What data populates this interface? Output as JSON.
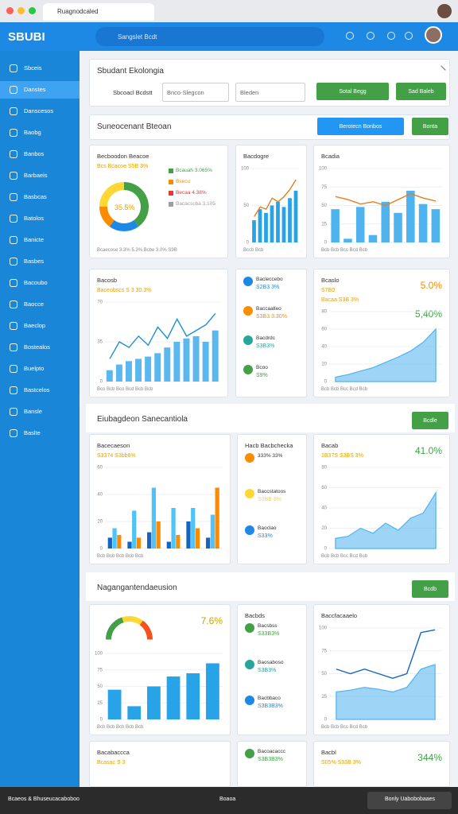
{
  "browser": {
    "tab": "Ruagnodcaled"
  },
  "header": {
    "logo": "SBUBI",
    "search": "Sangslet Bcdt"
  },
  "sidebar": [
    "Sbceis",
    "Danstes",
    "Danscesos",
    "Baobg",
    "Banbos",
    "Barbaeis",
    "Basbcas",
    "Batolos",
    "Banicte",
    "Basbes",
    "Bacoubo",
    "Baocce",
    "Baeclop",
    "Bostealos",
    "Buelpto",
    "Bastcelos",
    "Bansle",
    "Baslte"
  ],
  "filter": {
    "title": "Sbudant Ekolongia",
    "label": "Sbcoacl Bcdstt",
    "select1": "Bnco-Slegcon",
    "select2": "Bleden",
    "button1": "Sotal Begg",
    "button2": "Sad Baleb"
  },
  "panel": {
    "title": "Suneocenant Bteoan",
    "button1": "Berotecn Bonbos",
    "button2": "Bonta"
  },
  "section2": {
    "title": "Eiubagdeon Sanecantiola",
    "button": "Bcdle"
  },
  "section3": {
    "title": "Nagangantendaeusion",
    "button": "Bcdb"
  },
  "widgets": [
    {
      "title": "Becboodon Beacoe",
      "texts": [
        "Bcs Bcacoe S5B 3%"
      ],
      "donut": {
        "center": "35.5%",
        "values": [
          40,
          20,
          15,
          25
        ],
        "colors": [
          "#43a047",
          "#1e88e5",
          "#fb8c00",
          "#fdd835"
        ]
      },
      "legend": [
        {
          "label": "Bcauah 3.065%",
          "color": "#43a047"
        },
        {
          "label": "Bsecu",
          "color": "#fb8c00"
        },
        {
          "label": "Becaa 4.38%",
          "color": "#e53935"
        },
        {
          "label": "Bacacscba 3.105",
          "color": "#9e9e9e"
        }
      ],
      "footer": "Bcaecose  3.3%  5.3%   Bcbe 3.0%  S9B"
    },
    {
      "title": "Bacdogre",
      "chart": {
        "ylim": [
          0,
          100
        ],
        "yticks": [
          0,
          50,
          100
        ],
        "series": [
          {
            "kind": "bar",
            "color": "#29a3e8",
            "values": [
              30,
              45,
              40,
              50,
              55,
              48,
              60,
              70
            ]
          },
          {
            "kind": "line",
            "color": "#e67e22",
            "values": [
              35,
              48,
              45,
              60,
              55,
              62,
              72,
              85
            ]
          }
        ]
      },
      "footer": "Bccb  Bcb"
    },
    {
      "title": "Bcadia",
      "chart": {
        "ylim": [
          0,
          100
        ],
        "yticks": [
          0,
          25,
          50,
          75,
          100
        ],
        "series": [
          {
            "kind": "bar",
            "color": "#4fb3ef",
            "values": [
              45,
              5,
              48,
              10,
              55,
              40,
              70,
              52,
              45
            ]
          },
          {
            "kind": "line",
            "color": "#e67e22",
            "values": [
              62,
              58,
              52,
              55,
              50,
              58,
              66,
              60,
              56
            ]
          }
        ]
      },
      "footer": "Bcb   Bcb   Bcc   Bcd   Bcb"
    },
    {
      "title": "Bacosb",
      "texts": [
        "Baceobscs S 3 30.3%"
      ],
      "chart": {
        "ylim": [
          0,
          70
        ],
        "yticks": [
          0,
          35,
          70
        ],
        "series": [
          {
            "kind": "bar",
            "color": "#5ab8ef",
            "values": [
              10,
              15,
              18,
              20,
              22,
              25,
              30,
              35,
              38,
              40,
              35,
              45
            ]
          },
          {
            "kind": "line",
            "color": "#1e90d0",
            "values": [
              20,
              35,
              30,
              40,
              32,
              48,
              38,
              55,
              40,
              45,
              50,
              60
            ]
          }
        ]
      },
      "footer": "Bco  Bcb  Bco  Bcd  Bcb  Bcb"
    },
    {
      "items": [
        {
          "label": "Bacleccebo",
          "value": "S2B3 3%",
          "color": "#1e88e5"
        },
        {
          "label": "Baccaalleo",
          "value": "S3B3 3.30%",
          "color": "#fb8c00"
        },
        {
          "label": "Bacdrdc",
          "value": "S3B3%",
          "color": "#26a69a"
        },
        {
          "label": "Bcoo",
          "value": "S9%",
          "color": "#43a047"
        }
      ]
    },
    {
      "title": "Bcaslo",
      "texts": [
        "S7B0",
        "Bacaa  S3B 3%"
      ],
      "accents": [
        {
          "text": "5.0%",
          "color": "#fb8c00"
        },
        {
          "text": "5,40%",
          "color": "#43a047"
        }
      ],
      "chart": {
        "ylim": [
          0,
          80
        ],
        "yticks": [
          0,
          20,
          40,
          60,
          80
        ],
        "series": [
          {
            "kind": "area",
            "color": "#4fb3ef",
            "values": [
              5,
              8,
              12,
              16,
              22,
              28,
              35,
              45,
              60
            ]
          }
        ]
      },
      "footer": "Bcb   Bcb   Bcc   Bcd   Bcb"
    },
    {
      "title": "Bacecaeson",
      "texts": [
        "S3374 S3bb6%"
      ],
      "chart": {
        "ylim": [
          0,
          60
        ],
        "yticks": [
          0,
          20,
          40,
          60
        ],
        "series": [
          {
            "kind": "bar",
            "color": "#1565c0",
            "values": [
              8,
              5,
              12,
              5,
              20,
              8
            ]
          },
          {
            "kind": "bar",
            "color": "#4fc3f7",
            "values": [
              15,
              28,
              45,
              30,
              30,
              25
            ]
          },
          {
            "kind": "bar",
            "color": "#fb8c00",
            "values": [
              10,
              8,
              20,
              10,
              15,
              45
            ]
          }
        ]
      },
      "footer": "Bcb  Bcb  Bcb  Bcb  Bcb"
    },
    {
      "title": "Hacb Bacbchecka",
      "items": [
        {
          "label": "333% 33%",
          "color": "#fb8c00"
        },
        {
          "label": "Baccstatoos",
          "value": "S3BB 3%",
          "color": "#fdd835"
        },
        {
          "label": "Baoclao",
          "value": "S33%",
          "color": "#1e88e5"
        }
      ]
    },
    {
      "title": "Bacab",
      "texts": [
        "1B37S S3BS 3%"
      ],
      "accents": [
        {
          "text": "41.0%",
          "color": "#43a047"
        }
      ],
      "chart": {
        "ylim": [
          0,
          80
        ],
        "yticks": [
          0,
          20,
          40,
          60,
          80
        ],
        "series": [
          {
            "kind": "area",
            "color": "#4fb3ef",
            "values": [
              10,
              12,
              20,
              15,
              25,
              18,
              30,
              35,
              55
            ]
          }
        ]
      },
      "footer": "Bcb   Bcb   Bcc   Bcd   Bcb"
    },
    {
      "gauge": {
        "values": [
          40,
          30,
          30
        ],
        "colors": [
          "#43a047",
          "#fdd835",
          "#f4511e"
        ]
      },
      "accents": [
        {
          "text": "7.6%",
          "color": "#c9a400"
        }
      ],
      "chart": {
        "ylim": [
          0,
          100
        ],
        "yticks": [
          0,
          25,
          50,
          75,
          100
        ],
        "series": [
          {
            "kind": "bar",
            "color": "#29a3e8",
            "values": [
              45,
              20,
              50,
              65,
              70,
              85
            ]
          }
        ]
      },
      "footer": "Bcb   Bcb   Bcb   Bcb   Bcb"
    },
    {
      "title": "Bacbds",
      "items": [
        {
          "label": "Bacsbss",
          "value": "S33B3%",
          "color": "#43a047"
        },
        {
          "label": "Baosaboso",
          "value": "S3B3%",
          "color": "#26a69a"
        },
        {
          "label": "Bacbbaco",
          "value": "S3B3B3%",
          "color": "#1e88e5"
        }
      ]
    },
    {
      "title": "Baccfacaaelo",
      "chart": {
        "ylim": [
          0,
          100
        ],
        "yticks": [
          0,
          25,
          50,
          75,
          100
        ],
        "series": [
          {
            "kind": "area",
            "color": "#4fb3ef",
            "values": [
              30,
              32,
              35,
              33,
              30,
              35,
              55,
              60
            ]
          },
          {
            "kind": "line",
            "color": "#1565c0",
            "values": [
              55,
              50,
              55,
              50,
              45,
              50,
              95,
              98
            ]
          }
        ]
      },
      "footer": "Bcb   Bcb   Bcc   Bcd   Bcb"
    },
    {
      "title": "Bacabaccca",
      "texts": [
        "Bcasac S 3"
      ]
    },
    {
      "items": [
        {
          "label": "Bacoacaccc",
          "value": "S3B3B3%",
          "color": "#43a047"
        }
      ]
    },
    {
      "title": "Bacbl",
      "texts": [
        "S05% S33B 3%"
      ],
      "accents": [
        {
          "text": "344%",
          "color": "#43a047"
        }
      ]
    }
  ],
  "taskbar": {
    "left": "Bcaeos & Bhuseucacaboboo",
    "middle": "Boaoa",
    "right": "Bonly Uabobobaaes"
  }
}
